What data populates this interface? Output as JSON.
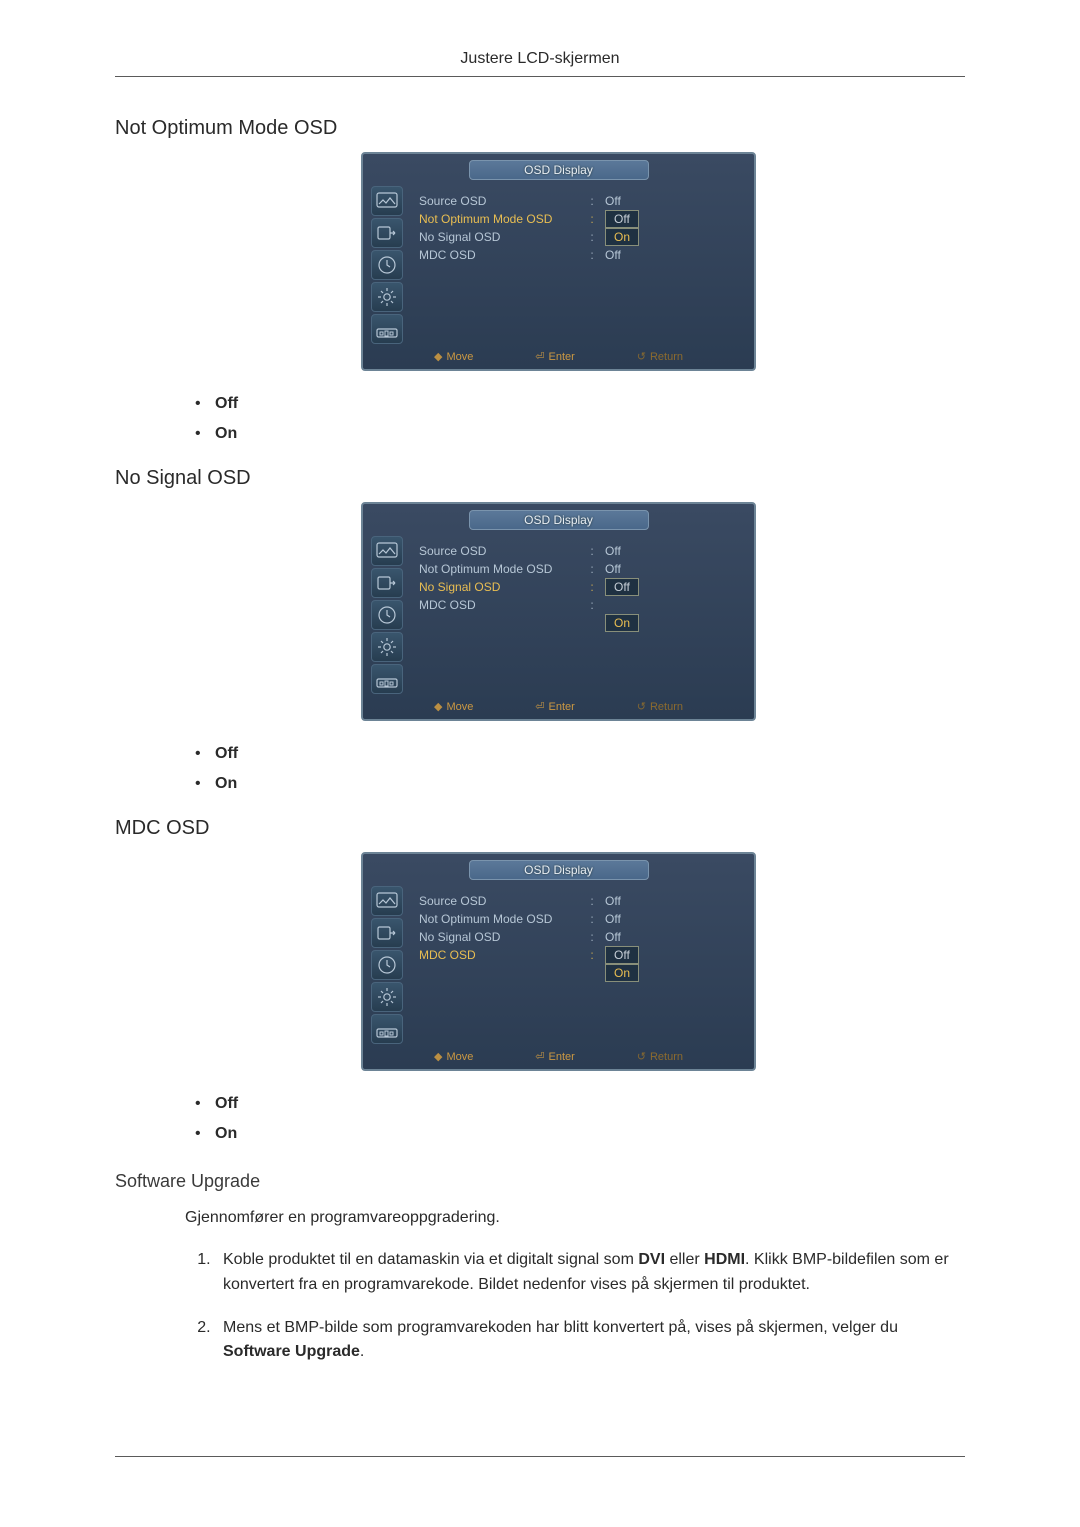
{
  "doc_header": "Justere LCD-skjermen",
  "sections": {
    "not_optimum": {
      "title": "Not Optimum Mode OSD",
      "opt_off": "Off",
      "opt_on": "On"
    },
    "no_signal": {
      "title": "No Signal OSD",
      "opt_off": "Off",
      "opt_on": "On"
    },
    "mdc": {
      "title": "MDC OSD",
      "opt_off": "Off",
      "opt_on": "On"
    },
    "software": {
      "title": "Software Upgrade",
      "lead": "Gjennomfører en programvareoppgradering.",
      "step1_a": "Koble produktet til en datamaskin via et digitalt signal som ",
      "step1_b": "DVI",
      "step1_c": " eller ",
      "step1_d": "HDMI",
      "step1_e": ". Klikk BMP-bildefilen som er konvertert fra en programvarekode. Bildet nedenfor vises på skjermen til produktet.",
      "step2_a": "Mens et BMP-bilde som programvarekoden har blitt konvertert på, vises på skjermen, velger du ",
      "step2_b": "Software Upgrade",
      "step2_c": "."
    }
  },
  "osd_common": {
    "title": "OSD Display",
    "labels": {
      "source": "Source OSD",
      "not_optimum": "Not Optimum Mode OSD",
      "no_signal": "No Signal OSD",
      "mdc": "MDC OSD"
    },
    "values": {
      "off": "Off",
      "on": "On"
    },
    "footer": {
      "move": "Move",
      "enter": "Enter",
      "return": "Return"
    },
    "colors": {
      "panel_border": "#6d8496",
      "panel_grad_top": "#3a4a62",
      "panel_grad_bot": "#2b3c52",
      "title_grad_top": "#5b7899",
      "title_grad_bot": "#4a688a",
      "title_border": "#7a94ad",
      "title_text": "#e8eef4",
      "row_text": "#b7c7d6",
      "active_text": "#e9be52",
      "footer_text": "#cb9842",
      "footer_dim": "#8c6b2e",
      "valbox_border": "#888f7a",
      "valbox_bg": "#1f3142"
    }
  },
  "osd_panels": {
    "not_optimum": {
      "rows": [
        {
          "label_key": "source",
          "value": "Off",
          "active": false,
          "boxed": false
        },
        {
          "label_key": "not_optimum",
          "value": "Off",
          "active": true,
          "boxed": true
        },
        {
          "label_key": "no_signal",
          "value": "On",
          "active": false,
          "boxed": true
        },
        {
          "label_key": "mdc",
          "value": "Off",
          "active": false,
          "boxed": false
        }
      ]
    },
    "no_signal": {
      "rows": [
        {
          "label_key": "source",
          "value": "Off",
          "active": false,
          "boxed": false
        },
        {
          "label_key": "not_optimum",
          "value": "Off",
          "active": false,
          "boxed": false
        },
        {
          "label_key": "no_signal",
          "value": "Off",
          "active": true,
          "boxed": true
        },
        {
          "label_key": "no_signal",
          "value": "On",
          "active": false,
          "boxed": true,
          "label_blank": true
        }
      ],
      "extra_row_mdc_before_dd": {
        "label_key": "mdc",
        "value": "",
        "active": false,
        "boxed": false
      }
    },
    "mdc": {
      "rows": [
        {
          "label_key": "source",
          "value": "Off",
          "active": false,
          "boxed": false
        },
        {
          "label_key": "not_optimum",
          "value": "Off",
          "active": false,
          "boxed": false
        },
        {
          "label_key": "no_signal",
          "value": "Off",
          "active": false,
          "boxed": false
        },
        {
          "label_key": "mdc",
          "value": "Off",
          "active": true,
          "boxed": true
        },
        {
          "label_key": "mdc",
          "value": "On",
          "active": false,
          "boxed": true,
          "label_blank": true
        }
      ]
    }
  },
  "icons": {
    "sidebar": [
      "picture-icon",
      "input-icon",
      "time-icon",
      "setup-icon",
      "multi-icon"
    ]
  }
}
